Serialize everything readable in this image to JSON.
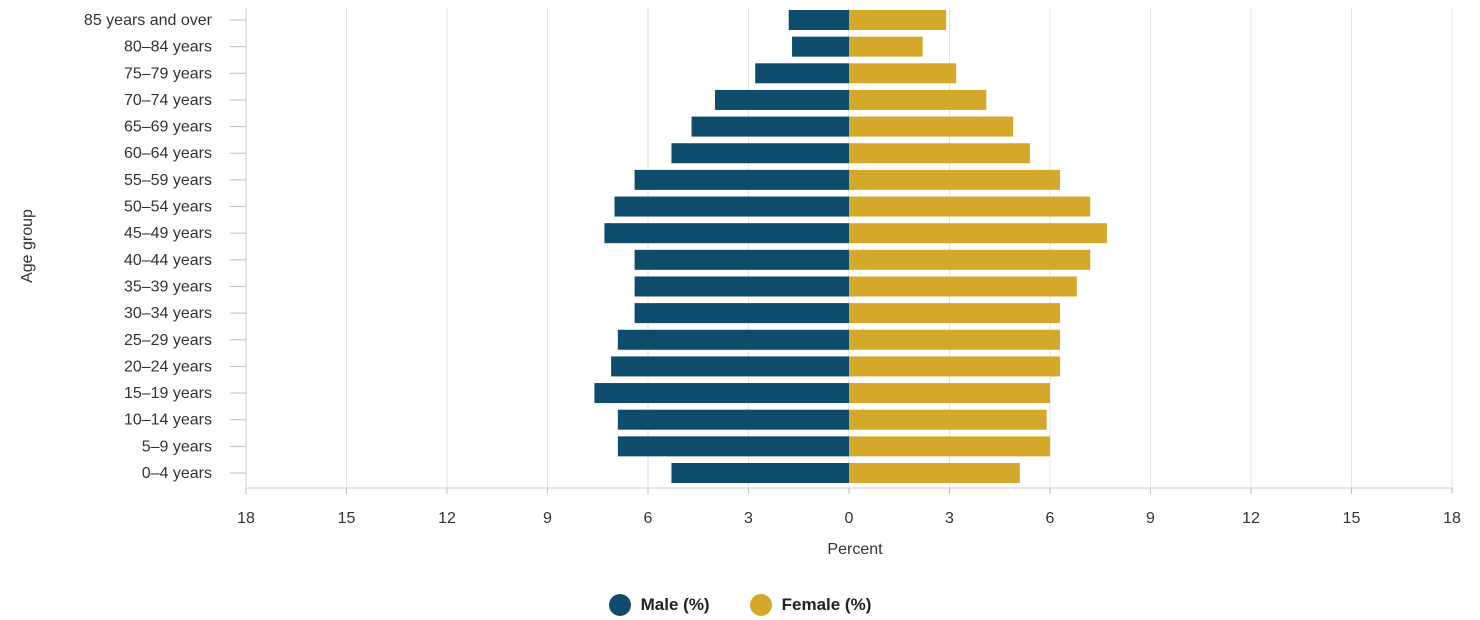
{
  "chart_data": {
    "type": "bar",
    "orientation": "horizontal",
    "variant": "population-pyramid",
    "categories": [
      "85 years and over",
      "80–84 years",
      "75–79 years",
      "70–74 years",
      "65–69 years",
      "60–64 years",
      "55–59 years",
      "50–54 years",
      "45–49 years",
      "40–44 years",
      "35–39 years",
      "30–34 years",
      "25–29 years",
      "20–24 years",
      "15–19 years",
      "10–14 years",
      "5–9 years",
      "0–4 years"
    ],
    "series": [
      {
        "name": "Male (%)",
        "color": "#0f4c6b",
        "values": [
          1.8,
          1.7,
          2.8,
          4.0,
          4.7,
          5.3,
          6.4,
          7.0,
          7.3,
          6.4,
          6.4,
          6.4,
          6.9,
          7.1,
          7.6,
          6.9,
          6.9,
          5.3
        ]
      },
      {
        "name": "Female (%)",
        "color": "#d4a92b",
        "values": [
          2.9,
          2.2,
          3.2,
          4.1,
          4.9,
          5.4,
          6.3,
          7.2,
          7.7,
          7.2,
          6.8,
          6.3,
          6.3,
          6.3,
          6.0,
          5.9,
          6.0,
          5.1
        ]
      }
    ],
    "xlabel": "Percent",
    "ylabel": "Age group",
    "xlim": [
      -18,
      18
    ],
    "xticks": [
      -18,
      -15,
      -12,
      -9,
      -6,
      -3,
      0,
      3,
      6,
      9,
      12,
      15,
      18
    ],
    "xtick_labels": [
      "18",
      "15",
      "12",
      "9",
      "6",
      "3",
      "0",
      "3",
      "6",
      "9",
      "12",
      "15",
      "18"
    ],
    "grid": "vertical",
    "legend_position": "bottom"
  }
}
